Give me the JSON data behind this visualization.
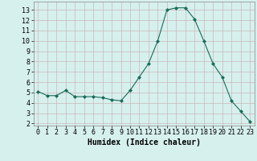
{
  "x": [
    0,
    1,
    2,
    3,
    4,
    5,
    6,
    7,
    8,
    9,
    10,
    11,
    12,
    13,
    14,
    15,
    16,
    17,
    18,
    19,
    20,
    21,
    22,
    23
  ],
  "y": [
    5.1,
    4.7,
    4.7,
    5.2,
    4.6,
    4.6,
    4.6,
    4.5,
    4.3,
    4.2,
    5.2,
    6.5,
    7.8,
    10.0,
    13.0,
    13.2,
    13.2,
    12.1,
    10.0,
    7.8,
    6.5,
    4.2,
    3.2,
    2.2
  ],
  "line_color": "#1a6b5a",
  "marker": "D",
  "marker_size": 2,
  "bg_color": "#d6f0ee",
  "grid_color": "#c8b8b8",
  "xlabel": "Humidex (Indice chaleur)",
  "xlabel_fontsize": 7,
  "tick_fontsize": 6,
  "xlim": [
    -0.5,
    23.5
  ],
  "ylim": [
    1.8,
    13.8
  ],
  "yticks": [
    2,
    3,
    4,
    5,
    6,
    7,
    8,
    9,
    10,
    11,
    12,
    13
  ],
  "xticks": [
    0,
    1,
    2,
    3,
    4,
    5,
    6,
    7,
    8,
    9,
    10,
    11,
    12,
    13,
    14,
    15,
    16,
    17,
    18,
    19,
    20,
    21,
    22,
    23
  ]
}
